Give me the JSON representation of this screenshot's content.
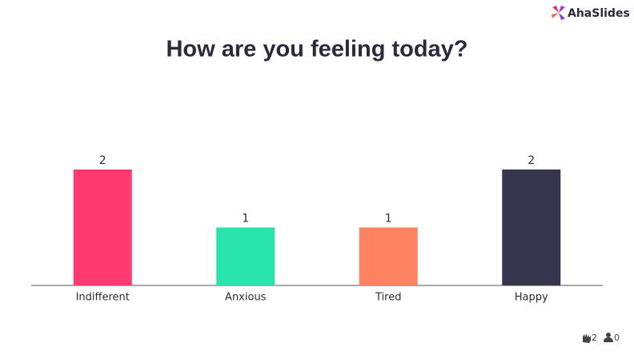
{
  "brand": "AhaSlides",
  "chart_data": {
    "type": "bar",
    "title": "How are you feeling today?",
    "categories": [
      "Indifferent",
      "Anxious",
      "Tired",
      "Happy"
    ],
    "values": [
      2,
      1,
      1,
      2
    ],
    "colors": [
      "#ff3a72",
      "#2ae4ae",
      "#ff8361",
      "#36354d"
    ]
  },
  "footer": {
    "reactions": 2,
    "participants": 0
  }
}
